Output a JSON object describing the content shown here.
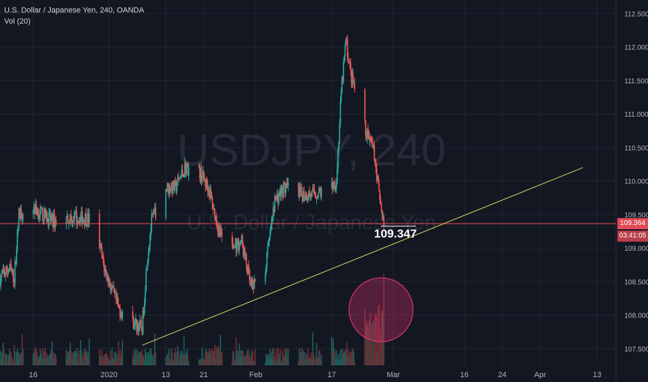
{
  "legend": {
    "symbol_line": "U.S. Dollar / Japanese Yen, 240, OANDA",
    "volume_line": "Vol (20)"
  },
  "watermark": {
    "ticker": "USDJPY, 240",
    "name": "U.S. Dollar / Japanese Yen"
  },
  "price_badge": "109.364",
  "timer_badge": "03:41:05",
  "annotation": "109.347",
  "colors": {
    "background": "#131722",
    "up": "#26a69a",
    "down": "#ef5350",
    "grid": "#222632",
    "trendline": "#d9d960",
    "price_line": "#ef5350",
    "volume_up": "#1f5a57",
    "volume_down": "#6a2d33",
    "highlight_circle": "#e0336f"
  },
  "chart_data": {
    "type": "candlestick",
    "title": "U.S. Dollar / Japanese Yen, 240, OANDA",
    "ylim": [
      107.25,
      112.7
    ],
    "y_ticks": [
      "112.500",
      "112.000",
      "111.500",
      "111.000",
      "110.500",
      "110.000",
      "109.500",
      "109.000",
      "108.500",
      "108.000",
      "107.500"
    ],
    "x_ticks": [
      "16",
      "2020",
      "13",
      "21",
      "Feb",
      "17",
      "Mar",
      "16",
      "24",
      "Apr",
      "13"
    ],
    "x_tick_dates": [
      "2019-12-16",
      "2020-01-01",
      "2020-01-13",
      "2020-01-21",
      "2020-02-01",
      "2020-02-17",
      "2020-03-01",
      "2020-03-16",
      "2020-03-24",
      "2020-04-01",
      "2020-04-13"
    ],
    "xlim": [
      "2019-12-09",
      "2020-04-17"
    ],
    "price_path": [
      [
        "2019-12-09",
        108.55
      ],
      [
        "2019-12-11",
        108.7
      ],
      [
        "2019-12-12",
        108.55
      ],
      [
        "2019-12-13",
        109.5
      ],
      [
        "2019-12-16",
        109.6
      ],
      [
        "2019-12-20",
        109.4
      ],
      [
        "2019-12-24",
        109.45
      ],
      [
        "2019-12-27",
        109.45
      ],
      [
        "2019-12-29",
        109.4
      ],
      [
        "2019-12-31",
        108.7
      ],
      [
        "2020-01-03",
        108.1
      ],
      [
        "2020-01-06",
        107.9
      ],
      [
        "2020-01-08",
        107.8
      ],
      [
        "2020-01-09",
        108.8
      ],
      [
        "2020-01-10",
        109.4
      ],
      [
        "2020-01-13",
        109.9
      ],
      [
        "2020-01-15",
        109.9
      ],
      [
        "2020-01-17",
        110.2
      ],
      [
        "2020-01-20",
        110.15
      ],
      [
        "2020-01-22",
        109.9
      ],
      [
        "2020-01-24",
        109.3
      ],
      [
        "2020-01-27",
        109.0
      ],
      [
        "2020-01-29",
        109.1
      ],
      [
        "2020-01-31",
        108.4
      ],
      [
        "2020-02-03",
        108.7
      ],
      [
        "2020-02-05",
        109.7
      ],
      [
        "2020-02-07",
        109.9
      ],
      [
        "2020-02-10",
        109.8
      ],
      [
        "2020-02-13",
        109.8
      ],
      [
        "2020-02-16",
        109.85
      ],
      [
        "2020-02-18",
        110.0
      ],
      [
        "2020-02-19",
        111.3
      ],
      [
        "2020-02-20",
        112.1
      ],
      [
        "2020-02-21",
        111.6
      ],
      [
        "2020-02-24",
        110.8
      ],
      [
        "2020-02-25",
        110.6
      ],
      [
        "2020-02-26",
        110.4
      ],
      [
        "2020-02-27",
        109.8
      ],
      [
        "2020-02-28",
        109.35
      ]
    ],
    "trendline": {
      "from": [
        "2020-01-08",
        107.55
      ],
      "to": [
        "2020-04-10",
        110.2
      ]
    },
    "current_price": 109.364,
    "label_value": 109.347,
    "volume_spike_date": "2020-02-28"
  }
}
